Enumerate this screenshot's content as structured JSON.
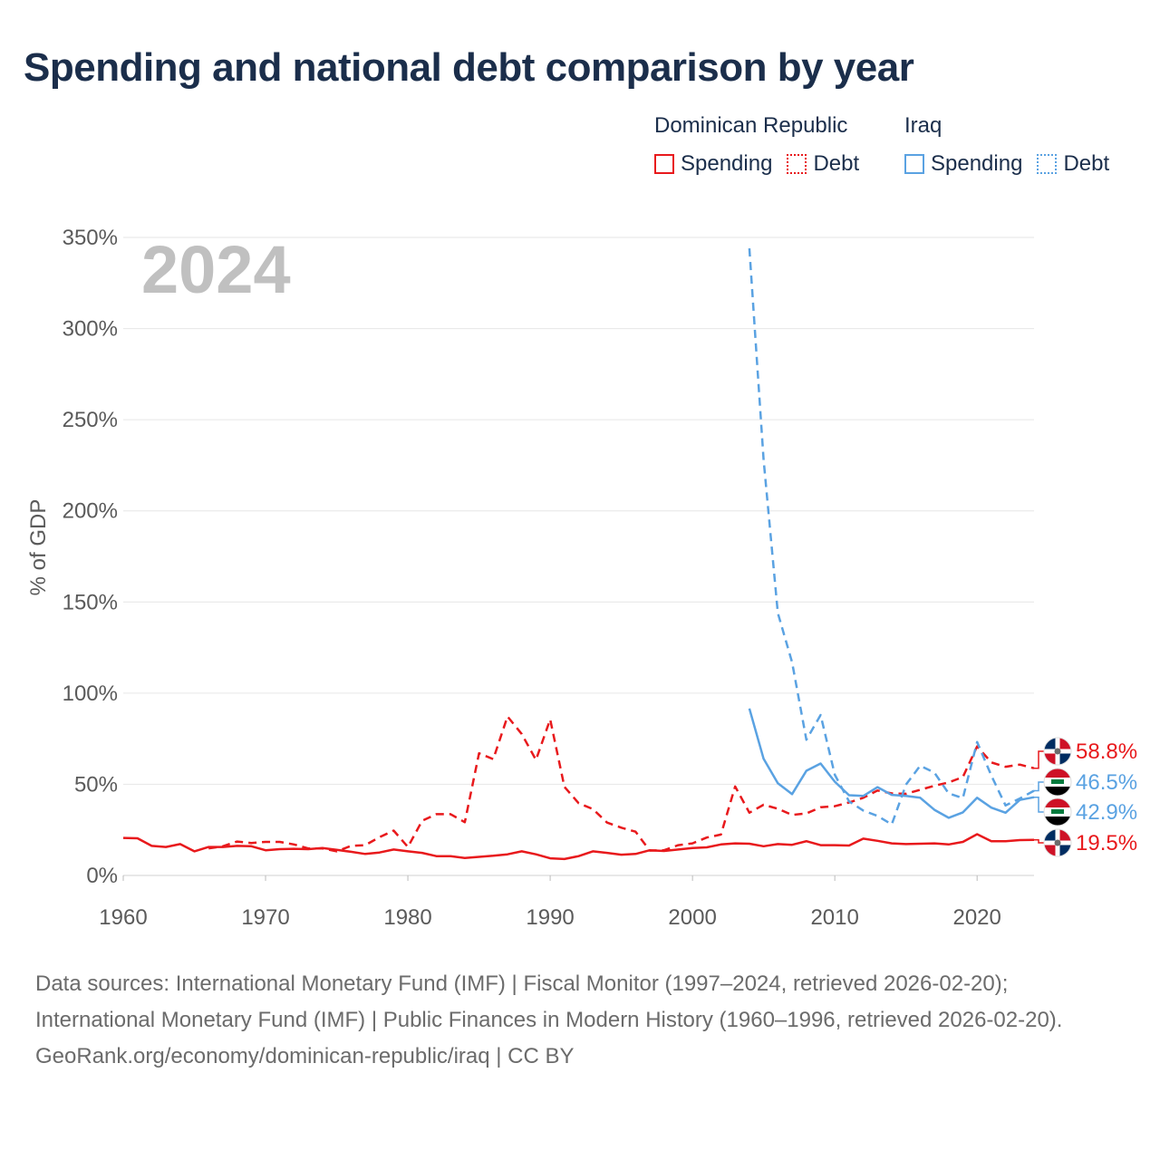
{
  "title": "Spending and national debt comparison by year",
  "colors": {
    "dominican": "#e8191c",
    "iraq": "#5aa2e2",
    "grid": "#e6e6e6",
    "axis_text": "#5a5a5a",
    "year_label": "#c0c0c0"
  },
  "legend": {
    "groups": [
      {
        "name": "Dominican Republic",
        "items": [
          {
            "label": "Spending",
            "style": "solid",
            "color": "#e8191c"
          },
          {
            "label": "Debt",
            "style": "dotted",
            "color": "#e8191c"
          }
        ]
      },
      {
        "name": "Iraq",
        "items": [
          {
            "label": "Spending",
            "style": "solid",
            "color": "#5aa2e2"
          },
          {
            "label": "Debt",
            "style": "dotted",
            "color": "#5aa2e2"
          }
        ]
      }
    ]
  },
  "chart_data": {
    "type": "line",
    "title": "Spending and national debt comparison by year",
    "ylabel": "% of GDP",
    "xlabel": "",
    "xlim": [
      1960,
      2024
    ],
    "ylim": [
      0,
      350
    ],
    "x_ticks": [
      1960,
      1970,
      1980,
      1990,
      2000,
      2010,
      2020
    ],
    "x_tick_labels": [
      "1960",
      "1970",
      "1980",
      "1990",
      "2000",
      "2010",
      "2020"
    ],
    "y_ticks": [
      0,
      50,
      100,
      150,
      200,
      250,
      300,
      350
    ],
    "y_tick_labels": [
      "0%",
      "50%",
      "100%",
      "150%",
      "200%",
      "250%",
      "300%",
      "350%"
    ],
    "current_year": "2024",
    "series": [
      {
        "name": "Dominican Republic Spending",
        "country": "Dominican Republic",
        "kind": "spending",
        "dash": "solid",
        "color": "#e8191c",
        "x": [
          1960,
          1961,
          1962,
          1963,
          1964,
          1965,
          1966,
          1967,
          1968,
          1969,
          1970,
          1971,
          1972,
          1973,
          1974,
          1975,
          1976,
          1977,
          1978,
          1979,
          1980,
          1981,
          1982,
          1983,
          1984,
          1985,
          1986,
          1987,
          1988,
          1989,
          1990,
          1991,
          1992,
          1993,
          1994,
          1995,
          1996,
          1997,
          1998,
          1999,
          2000,
          2001,
          2002,
          2003,
          2004,
          2005,
          2006,
          2007,
          2008,
          2009,
          2010,
          2011,
          2012,
          2013,
          2014,
          2015,
          2016,
          2017,
          2018,
          2019,
          2020,
          2021,
          2022,
          2023,
          2024
        ],
        "values": [
          20.6,
          20.4,
          16.2,
          15.6,
          17.2,
          13.2,
          15.6,
          15.6,
          16.2,
          16.0,
          13.8,
          14.4,
          14.6,
          14.4,
          15.0,
          14.0,
          13.0,
          11.8,
          12.6,
          14.2,
          13.2,
          12.4,
          10.6,
          10.6,
          9.6,
          10.2,
          10.8,
          11.6,
          13.2,
          11.6,
          9.4,
          9.0,
          10.6,
          13.2,
          12.4,
          11.4,
          11.8,
          13.8,
          13.4,
          14.2,
          15.0,
          15.4,
          17.0,
          17.6,
          17.4,
          16.0,
          17.2,
          16.8,
          18.8,
          16.6,
          16.6,
          16.4,
          20.2,
          19.0,
          17.6,
          17.2,
          17.4,
          17.6,
          17.0,
          18.4,
          22.6,
          18.8,
          18.8,
          19.4,
          19.5
        ],
        "end_label": "19.5%"
      },
      {
        "name": "Dominican Republic Debt",
        "country": "Dominican Republic",
        "kind": "debt",
        "dash": "dashed",
        "color": "#e8191c",
        "x": [
          1966,
          1967,
          1968,
          1969,
          1970,
          1971,
          1972,
          1973,
          1974,
          1975,
          1976,
          1977,
          1978,
          1979,
          1980,
          1981,
          1982,
          1983,
          1984,
          1985,
          1986,
          1987,
          1988,
          1989,
          1990,
          1991,
          1992,
          1993,
          1994,
          1995,
          1996,
          1997,
          1998,
          1999,
          2000,
          2001,
          2002,
          2003,
          2004,
          2005,
          2006,
          2007,
          2008,
          2009,
          2010,
          2011,
          2012,
          2013,
          2014,
          2015,
          2016,
          2017,
          2018,
          2019,
          2020,
          2021,
          2022,
          2023,
          2024
        ],
        "values": [
          14.8,
          16.0,
          18.6,
          17.8,
          18.4,
          18.4,
          17.0,
          14.8,
          14.8,
          13.2,
          16.2,
          16.6,
          21.0,
          24.6,
          15.6,
          30.0,
          33.6,
          33.6,
          29.2,
          67.0,
          63.8,
          87.2,
          77.6,
          63.4,
          85.6,
          48.6,
          39.6,
          36.4,
          29.0,
          26.2,
          24.0,
          13.6,
          13.8,
          16.6,
          17.6,
          20.8,
          22.4,
          48.8,
          34.4,
          38.8,
          36.6,
          33.2,
          34.0,
          37.4,
          38.0,
          40.0,
          42.6,
          46.6,
          45.0,
          44.8,
          47.0,
          49.2,
          51.0,
          54.0,
          70.8,
          62.0,
          59.6,
          60.8,
          58.8
        ],
        "end_label": "58.8%"
      },
      {
        "name": "Iraq Spending",
        "country": "Iraq",
        "kind": "spending",
        "dash": "solid",
        "color": "#5aa2e2",
        "x": [
          2004,
          2005,
          2006,
          2007,
          2008,
          2009,
          2010,
          2011,
          2012,
          2013,
          2014,
          2015,
          2016,
          2017,
          2018,
          2019,
          2020,
          2021,
          2022,
          2023,
          2024
        ],
        "values": [
          91.6,
          64.0,
          50.6,
          44.6,
          57.4,
          61.4,
          51.4,
          44.0,
          43.6,
          48.4,
          44.2,
          43.6,
          42.6,
          36.0,
          31.6,
          34.6,
          42.6,
          37.2,
          34.4,
          41.4,
          42.9
        ],
        "end_label": "42.9%"
      },
      {
        "name": "Iraq Debt",
        "country": "Iraq",
        "kind": "debt",
        "dash": "dashed",
        "color": "#5aa2e2",
        "x": [
          2004,
          2005,
          2006,
          2007,
          2008,
          2009,
          2010,
          2011,
          2012,
          2013,
          2014,
          2015,
          2016,
          2017,
          2018,
          2019,
          2020,
          2021,
          2022,
          2023,
          2024
        ],
        "values": [
          344.0,
          228.0,
          144.0,
          117.0,
          74.4,
          88.0,
          55.2,
          40.6,
          35.6,
          32.6,
          28.0,
          49.8,
          60.2,
          56.4,
          45.0,
          42.4,
          73.2,
          54.8,
          38.4,
          42.2,
          46.5
        ],
        "end_label": "46.5%"
      }
    ]
  },
  "footer": {
    "sources": "Data sources: International Monetary Fund (IMF) | Fiscal Monitor (1997–2024, retrieved 2026-02-20); International Monetary Fund (IMF) | Public Finances in Modern History (1960–1996, retrieved 2026-02-20).",
    "credit": "GeoRank.org/economy/dominican-republic/iraq | CC BY"
  }
}
